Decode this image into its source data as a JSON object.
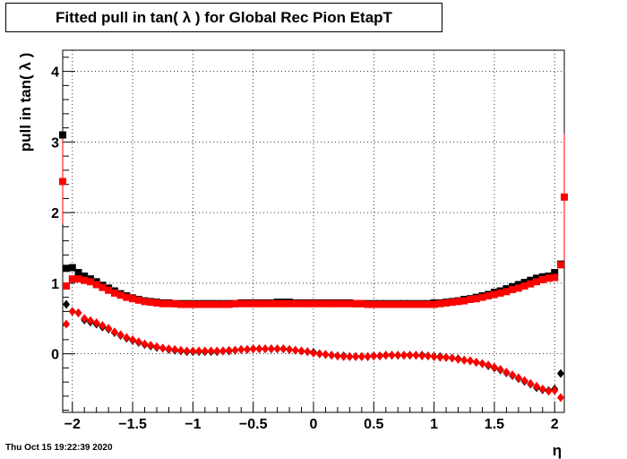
{
  "header": {
    "title": "Fitted pull in tan( λ ) for Global Rec Pion EtapT"
  },
  "footer": {
    "timestamp": "Thu Oct 15 19:22:39 2020"
  },
  "colors": {
    "black_series": "#000000",
    "red_series": "#ff0000",
    "grid": "#000000"
  },
  "chart_data": {
    "type": "scatter",
    "title": "Fitted pull in tan( λ ) for Global Rec Pion EtapT",
    "xlabel": "η",
    "ylabel": "pull in tan( λ )",
    "xlim": [
      -2.08,
      2.08
    ],
    "ylim": [
      -0.83,
      4.3
    ],
    "xticks": [
      -2,
      -1.5,
      -1,
      -0.5,
      0,
      0.5,
      1,
      1.5,
      2
    ],
    "xtick_labels": [
      "−2",
      "−1.5",
      "−1",
      "−0.5",
      "0",
      "0.5",
      "1",
      "1.5",
      "2"
    ],
    "yticks": [
      0,
      1,
      2,
      3,
      4
    ],
    "ytick_labels": [
      "0",
      "1",
      "2",
      "3",
      "4"
    ],
    "grid": true,
    "series": [
      {
        "marker": "square",
        "color": "#000000",
        "x": [
          -2.05,
          -2.0,
          -1.95,
          -1.9,
          -1.85,
          -1.8,
          -1.75,
          -1.7,
          -1.65,
          -1.6,
          -1.55,
          -1.5,
          -1.45,
          -1.4,
          -1.35,
          -1.3,
          -1.25,
          -1.2,
          -1.15,
          -1.1,
          -1.05,
          -1.0,
          -0.95,
          -0.9,
          -0.85,
          -0.8,
          -0.75,
          -0.7,
          -0.65,
          -0.6,
          -0.55,
          -0.5,
          -0.45,
          -0.4,
          -0.35,
          -0.3,
          -0.25,
          -0.2,
          -0.15,
          -0.1,
          -0.05,
          0.0,
          0.05,
          0.1,
          0.15,
          0.2,
          0.25,
          0.3,
          0.35,
          0.4,
          0.45,
          0.5,
          0.55,
          0.6,
          0.65,
          0.7,
          0.75,
          0.8,
          0.85,
          0.9,
          0.95,
          1.0,
          1.05,
          1.1,
          1.15,
          1.2,
          1.25,
          1.3,
          1.35,
          1.4,
          1.45,
          1.5,
          1.55,
          1.6,
          1.65,
          1.7,
          1.75,
          1.8,
          1.85,
          1.9,
          1.95,
          2.0,
          2.05
        ],
        "y": [
          1.21,
          1.22,
          1.15,
          1.1,
          1.06,
          1.02,
          0.97,
          0.93,
          0.89,
          0.85,
          0.82,
          0.79,
          0.77,
          0.75,
          0.74,
          0.73,
          0.72,
          0.72,
          0.71,
          0.71,
          0.71,
          0.71,
          0.71,
          0.71,
          0.71,
          0.71,
          0.71,
          0.71,
          0.71,
          0.72,
          0.72,
          0.72,
          0.72,
          0.72,
          0.72,
          0.73,
          0.73,
          0.73,
          0.72,
          0.72,
          0.72,
          0.72,
          0.72,
          0.72,
          0.72,
          0.72,
          0.72,
          0.72,
          0.71,
          0.71,
          0.71,
          0.71,
          0.71,
          0.71,
          0.71,
          0.71,
          0.71,
          0.71,
          0.71,
          0.71,
          0.71,
          0.72,
          0.72,
          0.73,
          0.74,
          0.75,
          0.77,
          0.78,
          0.8,
          0.82,
          0.84,
          0.87,
          0.89,
          0.92,
          0.95,
          0.98,
          1.01,
          1.04,
          1.07,
          1.09,
          1.1,
          1.15,
          1.27
        ]
      },
      {
        "marker": "square",
        "color": "#ff0000",
        "x": [
          -2.05,
          -2.0,
          -1.95,
          -1.9,
          -1.85,
          -1.8,
          -1.75,
          -1.7,
          -1.65,
          -1.6,
          -1.55,
          -1.5,
          -1.45,
          -1.4,
          -1.35,
          -1.3,
          -1.25,
          -1.2,
          -1.15,
          -1.1,
          -1.05,
          -1.0,
          -0.95,
          -0.9,
          -0.85,
          -0.8,
          -0.75,
          -0.7,
          -0.65,
          -0.6,
          -0.55,
          -0.5,
          -0.45,
          -0.4,
          -0.35,
          -0.3,
          -0.25,
          -0.2,
          -0.15,
          -0.1,
          -0.05,
          0.0,
          0.05,
          0.1,
          0.15,
          0.2,
          0.25,
          0.3,
          0.35,
          0.4,
          0.45,
          0.5,
          0.55,
          0.6,
          0.65,
          0.7,
          0.75,
          0.8,
          0.85,
          0.9,
          0.95,
          1.0,
          1.05,
          1.1,
          1.15,
          1.2,
          1.25,
          1.3,
          1.35,
          1.4,
          1.45,
          1.5,
          1.55,
          1.6,
          1.65,
          1.7,
          1.75,
          1.8,
          1.85,
          1.9,
          1.95,
          2.0,
          2.05
        ],
        "y": [
          0.96,
          1.06,
          1.06,
          1.04,
          1.02,
          0.98,
          0.94,
          0.9,
          0.86,
          0.83,
          0.8,
          0.78,
          0.76,
          0.74,
          0.73,
          0.72,
          0.71,
          0.71,
          0.71,
          0.7,
          0.7,
          0.7,
          0.7,
          0.7,
          0.7,
          0.7,
          0.7,
          0.7,
          0.71,
          0.71,
          0.71,
          0.71,
          0.71,
          0.71,
          0.71,
          0.71,
          0.71,
          0.71,
          0.71,
          0.71,
          0.71,
          0.71,
          0.71,
          0.71,
          0.71,
          0.71,
          0.71,
          0.71,
          0.71,
          0.71,
          0.7,
          0.7,
          0.7,
          0.7,
          0.7,
          0.7,
          0.7,
          0.7,
          0.7,
          0.7,
          0.7,
          0.7,
          0.71,
          0.72,
          0.73,
          0.74,
          0.75,
          0.77,
          0.78,
          0.8,
          0.82,
          0.84,
          0.86,
          0.88,
          0.91,
          0.93,
          0.96,
          0.99,
          1.02,
          1.05,
          1.07,
          1.08,
          1.26
        ]
      },
      {
        "marker": "diamond",
        "color": "#000000",
        "x": [
          -2.05,
          -2.0,
          -1.95,
          -1.9,
          -1.85,
          -1.8,
          -1.75,
          -1.7,
          -1.65,
          -1.6,
          -1.55,
          -1.5,
          -1.45,
          -1.4,
          -1.35,
          -1.3,
          -1.25,
          -1.2,
          -1.15,
          -1.1,
          -1.05,
          -1.0,
          -0.95,
          -0.9,
          -0.85,
          -0.8,
          -0.75,
          -0.7,
          -0.65,
          -0.6,
          -0.55,
          -0.5,
          -0.45,
          -0.4,
          -0.35,
          -0.3,
          -0.25,
          -0.2,
          -0.15,
          -0.1,
          -0.05,
          0.0,
          0.05,
          0.1,
          0.15,
          0.2,
          0.25,
          0.3,
          0.35,
          0.4,
          0.45,
          0.5,
          0.55,
          0.6,
          0.65,
          0.7,
          0.75,
          0.8,
          0.85,
          0.9,
          0.95,
          1.0,
          1.05,
          1.1,
          1.15,
          1.2,
          1.25,
          1.3,
          1.35,
          1.4,
          1.45,
          1.5,
          1.55,
          1.6,
          1.65,
          1.7,
          1.75,
          1.8,
          1.85,
          1.9,
          1.95,
          2.0,
          2.05
        ],
        "y": [
          0.7,
          0.6,
          0.58,
          0.48,
          0.45,
          0.42,
          0.38,
          0.35,
          0.3,
          0.26,
          0.22,
          0.19,
          0.16,
          0.13,
          0.11,
          0.09,
          0.08,
          0.06,
          0.05,
          0.04,
          0.03,
          0.03,
          0.03,
          0.03,
          0.03,
          0.03,
          0.04,
          0.04,
          0.05,
          0.06,
          0.06,
          0.07,
          0.07,
          0.07,
          0.07,
          0.07,
          0.07,
          0.06,
          0.05,
          0.04,
          0.03,
          0.02,
          0.0,
          -0.01,
          -0.02,
          -0.03,
          -0.03,
          -0.04,
          -0.04,
          -0.04,
          -0.04,
          -0.03,
          -0.03,
          -0.02,
          -0.02,
          -0.02,
          -0.02,
          -0.02,
          -0.02,
          -0.02,
          -0.03,
          -0.04,
          -0.04,
          -0.05,
          -0.06,
          -0.07,
          -0.09,
          -0.1,
          -0.12,
          -0.14,
          -0.17,
          -0.2,
          -0.23,
          -0.27,
          -0.31,
          -0.35,
          -0.39,
          -0.43,
          -0.48,
          -0.51,
          -0.52,
          -0.5,
          -0.28
        ]
      },
      {
        "marker": "diamond",
        "color": "#ff0000",
        "x": [
          -2.05,
          -2.0,
          -1.95,
          -1.9,
          -1.85,
          -1.8,
          -1.75,
          -1.7,
          -1.65,
          -1.6,
          -1.55,
          -1.5,
          -1.45,
          -1.4,
          -1.35,
          -1.3,
          -1.25,
          -1.2,
          -1.15,
          -1.1,
          -1.05,
          -1.0,
          -0.95,
          -0.9,
          -0.85,
          -0.8,
          -0.75,
          -0.7,
          -0.65,
          -0.6,
          -0.55,
          -0.5,
          -0.45,
          -0.4,
          -0.35,
          -0.3,
          -0.25,
          -0.2,
          -0.15,
          -0.1,
          -0.05,
          0.0,
          0.05,
          0.1,
          0.15,
          0.2,
          0.25,
          0.3,
          0.35,
          0.4,
          0.45,
          0.5,
          0.55,
          0.6,
          0.65,
          0.7,
          0.75,
          0.8,
          0.85,
          0.9,
          0.95,
          1.0,
          1.05,
          1.1,
          1.15,
          1.2,
          1.25,
          1.3,
          1.35,
          1.4,
          1.45,
          1.5,
          1.55,
          1.6,
          1.65,
          1.7,
          1.75,
          1.8,
          1.85,
          1.9,
          1.95,
          2.0,
          2.05
        ],
        "y": [
          0.42,
          0.6,
          0.58,
          0.5,
          0.47,
          0.44,
          0.4,
          0.36,
          0.31,
          0.27,
          0.23,
          0.2,
          0.17,
          0.14,
          0.12,
          0.1,
          0.08,
          0.07,
          0.06,
          0.05,
          0.04,
          0.04,
          0.04,
          0.04,
          0.04,
          0.04,
          0.04,
          0.05,
          0.05,
          0.06,
          0.06,
          0.07,
          0.07,
          0.07,
          0.07,
          0.07,
          0.07,
          0.06,
          0.05,
          0.04,
          0.03,
          0.01,
          0.0,
          -0.01,
          -0.02,
          -0.03,
          -0.04,
          -0.04,
          -0.04,
          -0.04,
          -0.04,
          -0.03,
          -0.03,
          -0.02,
          -0.02,
          -0.02,
          -0.02,
          -0.02,
          -0.02,
          -0.03,
          -0.03,
          -0.04,
          -0.05,
          -0.05,
          -0.06,
          -0.08,
          -0.09,
          -0.1,
          -0.12,
          -0.14,
          -0.16,
          -0.19,
          -0.22,
          -0.26,
          -0.3,
          -0.34,
          -0.38,
          -0.42,
          -0.46,
          -0.5,
          -0.53,
          -0.52,
          -0.62
        ]
      }
    ],
    "edge_points": [
      {
        "marker": "square",
        "color": "#000000",
        "x": -2.08,
        "y": 3.1,
        "err": 0.25
      },
      {
        "marker": "square",
        "color": "#ff0000",
        "x": -2.08,
        "y": 2.44,
        "err": 0.6
      },
      {
        "marker": "square",
        "color": "#ff0000",
        "x": 2.08,
        "y": 2.22,
        "err": 0.9
      }
    ]
  }
}
